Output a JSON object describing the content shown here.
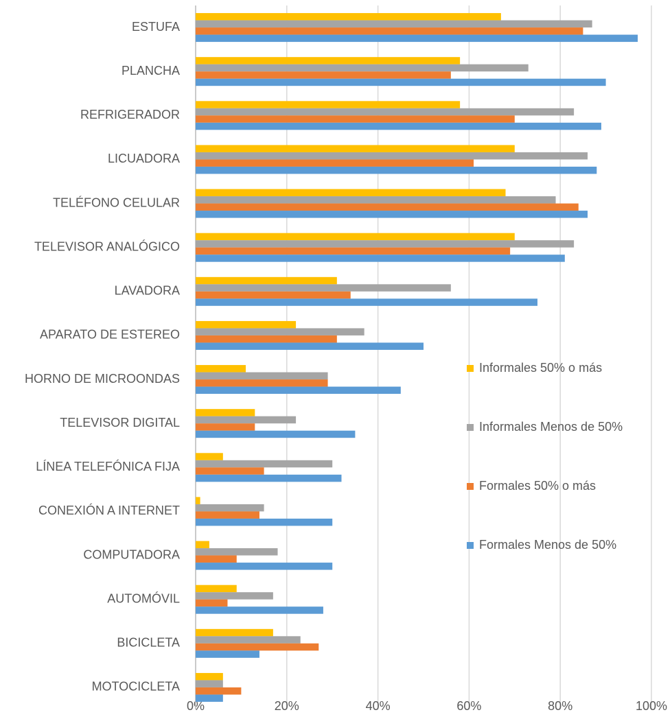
{
  "chart_data": {
    "type": "bar",
    "orientation": "horizontal",
    "categories": [
      "ESTUFA",
      "PLANCHA",
      "REFRIGERADOR",
      "LICUADORA",
      "TELÉFONO CELULAR",
      "TELEVISOR ANALÓGICO",
      "LAVADORA",
      "APARATO DE ESTEREO",
      "HORNO DE MICROONDAS",
      "TELEVISOR DIGITAL",
      "LÍNEA TELEFÓNICA FIJA",
      "CONEXIÓN A INTERNET",
      "COMPUTADORA",
      "AUTOMÓVIL",
      "BICICLETA",
      "MOTOCICLETA"
    ],
    "series": [
      {
        "name": "Informales 50% o más",
        "color": "#ffc000",
        "values": [
          67,
          58,
          58,
          70,
          68,
          70,
          31,
          22,
          11,
          13,
          6,
          1,
          3,
          9,
          17,
          6
        ]
      },
      {
        "name": "Informales Menos de 50%",
        "color": "#a5a5a5",
        "values": [
          87,
          73,
          83,
          86,
          79,
          83,
          56,
          37,
          29,
          22,
          30,
          15,
          18,
          17,
          23,
          6
        ]
      },
      {
        "name": "Formales 50% o más",
        "color": "#ed7d31",
        "values": [
          85,
          56,
          70,
          61,
          84,
          69,
          34,
          31,
          29,
          13,
          15,
          14,
          9,
          7,
          27,
          10
        ]
      },
      {
        "name": "Formales Menos de 50%",
        "color": "#5b9bd5",
        "values": [
          97,
          90,
          89,
          88,
          86,
          81,
          75,
          50,
          45,
          35,
          32,
          30,
          30,
          28,
          14,
          6
        ]
      }
    ],
    "xlim": [
      0,
      100
    ],
    "xticks": [
      {
        "value": 0,
        "label": "0%"
      },
      {
        "value": 20,
        "label": "20%"
      },
      {
        "value": 40,
        "label": "40%"
      },
      {
        "value": 60,
        "label": "60%"
      },
      {
        "value": 80,
        "label": "80%"
      },
      {
        "value": 100,
        "label": "100%"
      }
    ],
    "grid": true,
    "legend": "right"
  }
}
